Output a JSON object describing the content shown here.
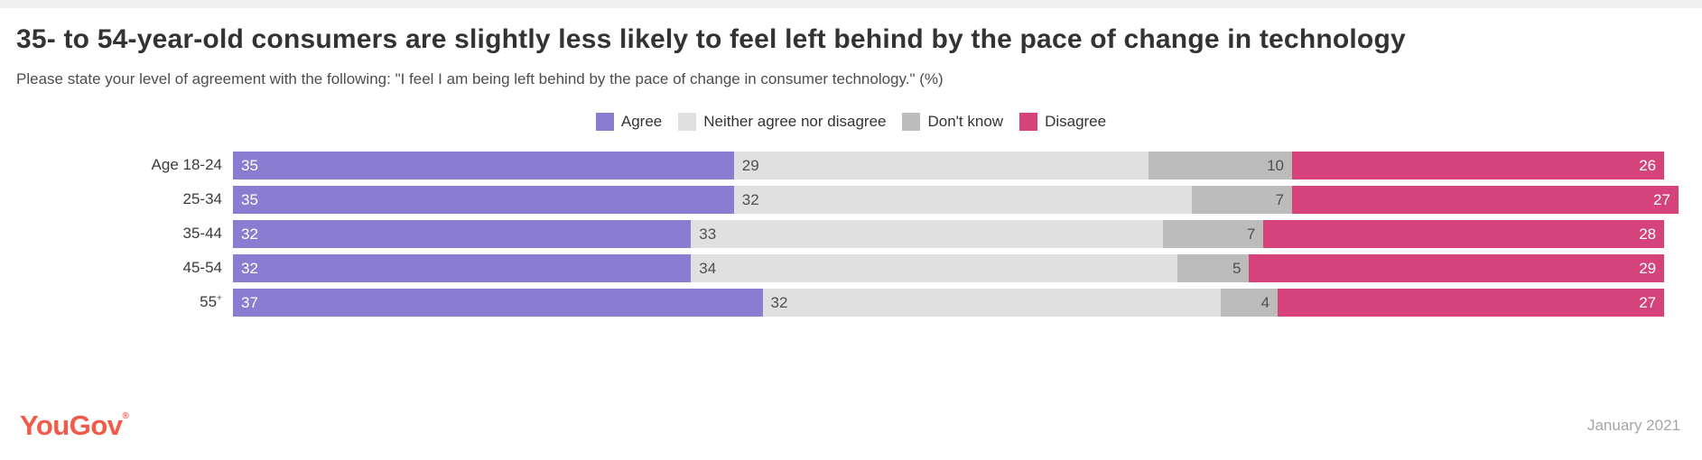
{
  "header": {
    "title": "35- to 54-year-old consumers are slightly less likely to feel left behind by the pace of change in technology",
    "subtitle": "Please state your level of agreement with the following: \"I feel I am being left behind by the pace of change in consumer technology.\" (%)"
  },
  "chart_data": {
    "type": "bar",
    "orientation": "horizontal",
    "stacked": true,
    "grid": false,
    "legend_position": "top-center",
    "categories": [
      "Age 18-24",
      "25-34",
      "35-44",
      "45-54",
      "55+"
    ],
    "series": [
      {
        "name": "Agree",
        "color": "#8a7dd1",
        "values": [
          35,
          35,
          32,
          32,
          37
        ]
      },
      {
        "name": "Neither agree nor disagree",
        "color": "#e0e0e0",
        "values": [
          29,
          32,
          33,
          34,
          32
        ]
      },
      {
        "name": "Don't know",
        "color": "#bcbcbc",
        "values": [
          10,
          7,
          7,
          5,
          4
        ]
      },
      {
        "name": "Disagree",
        "color": "#d6437a",
        "values": [
          26,
          27,
          28,
          29,
          27
        ]
      }
    ],
    "xlim": [
      0,
      101
    ],
    "value_labels_shown": true
  },
  "footer": {
    "brand": "YouGov",
    "registered_mark": "®",
    "brand_color": "#f25b4a",
    "date": "January 2021"
  }
}
